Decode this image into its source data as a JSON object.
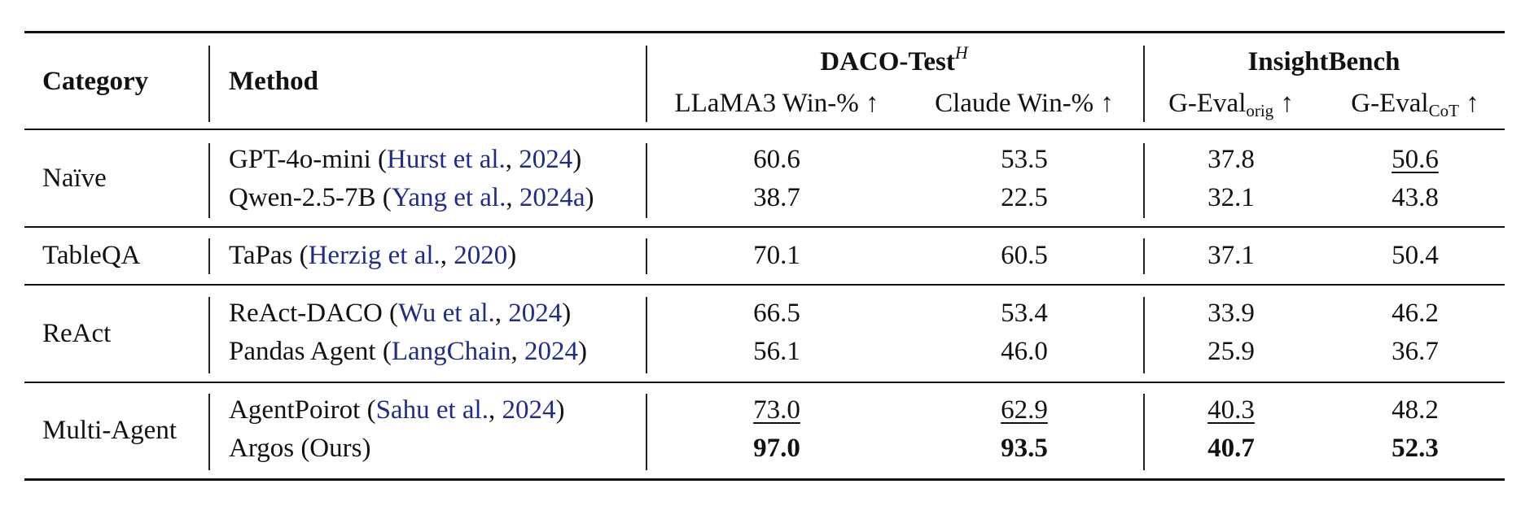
{
  "header": {
    "category": "Category",
    "method": "Method",
    "group1": {
      "title": "DACO-Test",
      "sup": "H"
    },
    "group2": {
      "title": "InsightBench"
    },
    "col1": "LLaMA3 Win-% ↑",
    "col2": "Claude Win-% ↑",
    "col3": {
      "base": "G-Eval",
      "sub": "orig",
      "arrow": " ↑"
    },
    "col4": {
      "base": "G-Eval",
      "sub": "CoT",
      "arrow": " ↑"
    }
  },
  "rows": [
    {
      "category": "Naïve",
      "method": "GPT-4o-mini (",
      "cite_author": "Hurst et al.",
      "cite_sep": ", ",
      "cite_year": "2024",
      "close": ")",
      "v1": "60.6",
      "v2": "53.5",
      "v3": "37.8",
      "v4": "50.6"
    },
    {
      "category": "",
      "method": "Qwen-2.5-7B (",
      "cite_author": "Yang et al.",
      "cite_sep": ", ",
      "cite_year": "2024a",
      "close": ")",
      "v1": "38.7",
      "v2": "22.5",
      "v3": "32.1",
      "v4": "43.8"
    },
    {
      "category": "TableQA",
      "method": "TaPas (",
      "cite_author": "Herzig et al.",
      "cite_sep": ", ",
      "cite_year": "2020",
      "close": ")",
      "v1": "70.1",
      "v2": "60.5",
      "v3": "37.1",
      "v4": "50.4"
    },
    {
      "category": "ReAct",
      "method": "ReAct-DACO (",
      "cite_author": "Wu et al.",
      "cite_sep": ", ",
      "cite_year": "2024",
      "close": ")",
      "v1": "66.5",
      "v2": "53.4",
      "v3": "33.9",
      "v4": "46.2"
    },
    {
      "category": "",
      "method": "Pandas Agent (",
      "cite_author": "LangChain",
      "cite_sep": ", ",
      "cite_year": "2024",
      "close": ")",
      "v1": "56.1",
      "v2": "46.0",
      "v3": "25.9",
      "v4": "36.7"
    },
    {
      "category": "Multi-Agent",
      "method": "AgentPoirot (",
      "cite_author": "Sahu et al.",
      "cite_sep": ", ",
      "cite_year": "2024",
      "close": ")",
      "v1": "73.0",
      "v2": "62.9",
      "v3": "40.3",
      "v4": "48.2"
    },
    {
      "category": "",
      "method": "Argos (Ours)",
      "cite_author": "",
      "cite_sep": "",
      "cite_year": "",
      "close": "",
      "v1": "97.0",
      "v2": "93.5",
      "v3": "40.7",
      "v4": "52.3"
    }
  ],
  "emphasis": {
    "bold": [
      "6.v1",
      "6.v2",
      "6.v3",
      "6.v4"
    ],
    "underline": [
      "0.v4",
      "5.v1",
      "5.v2",
      "5.v3"
    ]
  }
}
